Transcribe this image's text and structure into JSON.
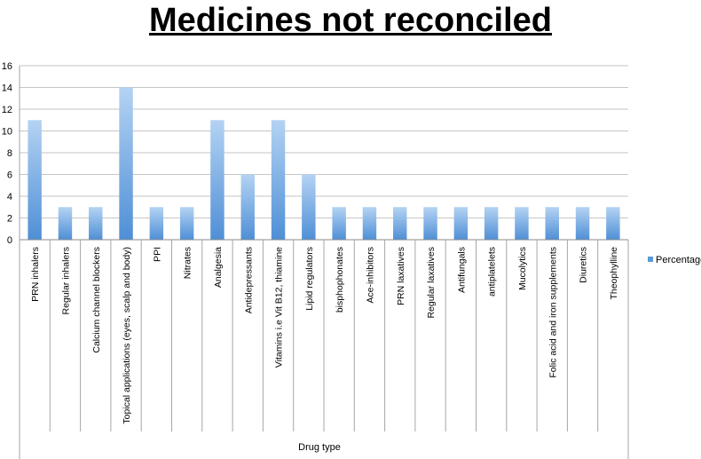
{
  "chart_data": {
    "type": "bar",
    "title": "Medicines not reconciled",
    "xlabel": "Drug type",
    "ylabel": "",
    "ylim": [
      0,
      16
    ],
    "yticks": [
      0,
      2,
      4,
      6,
      8,
      10,
      12,
      14,
      16
    ],
    "grid": true,
    "legend_position": "right",
    "categories": [
      "PRN inhalers",
      "Regular inhalers",
      "Calcium channel blockers",
      "Topical applications (eyes, scalp and body)",
      "PPI",
      "Nitrates",
      "Analgesia",
      "Antidepressants",
      "Vitamins i.e Vit B12, thiamine",
      "Lipid regulators",
      "bisphophonates",
      "Ace-inhibitors",
      "PRN laxatives",
      "Regular laxatives",
      "Antifungals",
      "antiplatelets",
      "Mucolytics",
      "Folic acid and iron supplements",
      "Diuretics",
      "Theophylline"
    ],
    "series": [
      {
        "name": "Percentage",
        "color": "#5b9bd5",
        "values": [
          11,
          3,
          3,
          14,
          3,
          3,
          11,
          6,
          11,
          6,
          3,
          3,
          3,
          3,
          3,
          3,
          3,
          3,
          3,
          3
        ]
      }
    ]
  }
}
